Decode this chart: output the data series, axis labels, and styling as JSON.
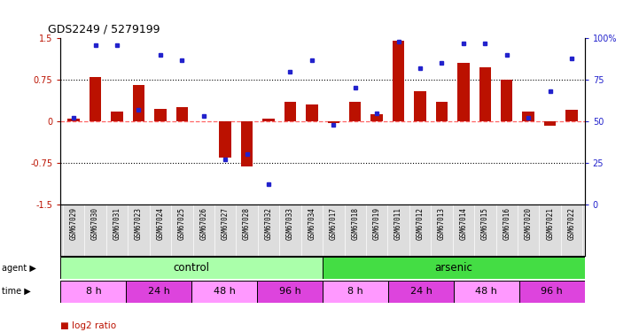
{
  "title": "GDS2249 / 5279199",
  "samples": [
    "GSM67029",
    "GSM67030",
    "GSM67031",
    "GSM67023",
    "GSM67024",
    "GSM67025",
    "GSM67026",
    "GSM67027",
    "GSM67028",
    "GSM67032",
    "GSM67033",
    "GSM67034",
    "GSM67017",
    "GSM67018",
    "GSM67019",
    "GSM67011",
    "GSM67012",
    "GSM67013",
    "GSM67014",
    "GSM67015",
    "GSM67016",
    "GSM67020",
    "GSM67021",
    "GSM67022"
  ],
  "log2_ratio": [
    0.05,
    0.8,
    0.18,
    0.65,
    0.22,
    0.25,
    0.0,
    -0.65,
    -0.82,
    0.05,
    0.35,
    0.3,
    -0.04,
    0.35,
    0.12,
    1.45,
    0.55,
    0.35,
    1.05,
    0.98,
    0.75,
    0.18,
    -0.08,
    0.2
  ],
  "percentile": [
    52,
    96,
    96,
    57,
    90,
    87,
    53,
    27,
    30,
    12,
    80,
    87,
    48,
    70,
    55,
    98,
    82,
    85,
    97,
    97,
    90,
    52,
    68,
    88
  ],
  "agent_groups": [
    {
      "label": "control",
      "start": 0,
      "end": 12,
      "color": "#AAFFAA"
    },
    {
      "label": "arsenic",
      "start": 12,
      "end": 24,
      "color": "#44DD44"
    }
  ],
  "time_groups": [
    {
      "label": "8 h",
      "start": 0,
      "end": 3,
      "color": "#FF99FF"
    },
    {
      "label": "24 h",
      "start": 3,
      "end": 6,
      "color": "#DD44DD"
    },
    {
      "label": "48 h",
      "start": 6,
      "end": 9,
      "color": "#FF99FF"
    },
    {
      "label": "96 h",
      "start": 9,
      "end": 12,
      "color": "#DD44DD"
    },
    {
      "label": "8 h",
      "start": 12,
      "end": 15,
      "color": "#FF99FF"
    },
    {
      "label": "24 h",
      "start": 15,
      "end": 18,
      "color": "#DD44DD"
    },
    {
      "label": "48 h",
      "start": 18,
      "end": 21,
      "color": "#FF99FF"
    },
    {
      "label": "96 h",
      "start": 21,
      "end": 24,
      "color": "#DD44DD"
    }
  ],
  "bar_color": "#BB1100",
  "dot_color": "#2222CC",
  "ylim": [
    -1.5,
    1.5
  ],
  "y2lim": [
    0,
    100
  ],
  "yticks_left": [
    -1.5,
    -0.75,
    0,
    0.75,
    1.5
  ],
  "ytick_labels_left": [
    "-1.5",
    "-0.75",
    "0",
    "0.75",
    "1.5"
  ],
  "y2ticks": [
    0,
    25,
    50,
    75,
    100
  ],
  "y2tick_labels": [
    "0",
    "25",
    "50",
    "75",
    "100%"
  ],
  "hlines": [
    0.75,
    -0.75
  ],
  "zero_line_color": "#FF6666",
  "n_samples": 24
}
